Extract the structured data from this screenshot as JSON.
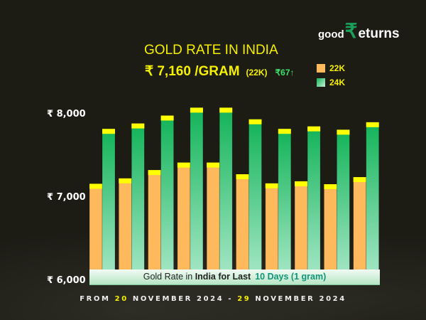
{
  "brand": {
    "logo_good": "good",
    "logo_rupee": "₹",
    "logo_eturns": "eturns"
  },
  "header": {
    "title": "GOLD RATE IN INDIA",
    "price": "₹ 7,160 /GRAM",
    "price_unit": "(22K)",
    "change": "₹67↑"
  },
  "chart_data": {
    "type": "bar",
    "title": "GOLD RATE IN INDIA",
    "categories": [
      "",
      "",
      "",
      "",
      "",
      "",
      "",
      "",
      "",
      ""
    ],
    "series": [
      {
        "name": "22K",
        "color": "#fdb95c",
        "values": [
          7150,
          7215,
          7315,
          7405,
          7405,
          7265,
          7155,
          7180,
          7145,
          7230
        ]
      },
      {
        "name": "24K",
        "color": "#12b358",
        "values": [
          7810,
          7875,
          7970,
          8065,
          8065,
          7925,
          7810,
          7840,
          7800,
          7890
        ]
      }
    ],
    "cap_color": "#ffff00",
    "yticks": [
      "₹ 8,000",
      "₹ 7,000",
      "₹ 6,000"
    ],
    "ytick_values": [
      8000,
      7000,
      6000
    ],
    "ylim": [
      6000,
      8100
    ],
    "grid": false,
    "legend": "top-right",
    "xlabel": "",
    "ylabel": ""
  },
  "banner": {
    "part1": "Gold Rate in ",
    "part2": "India for Last",
    "part3": "10 Days (1 gram)"
  },
  "range": {
    "from": "FROM ",
    "d1": "20",
    "m1": " NOVEMBER 2024 - ",
    "d2": "29",
    "m2": " NOVEMBER 2024"
  }
}
